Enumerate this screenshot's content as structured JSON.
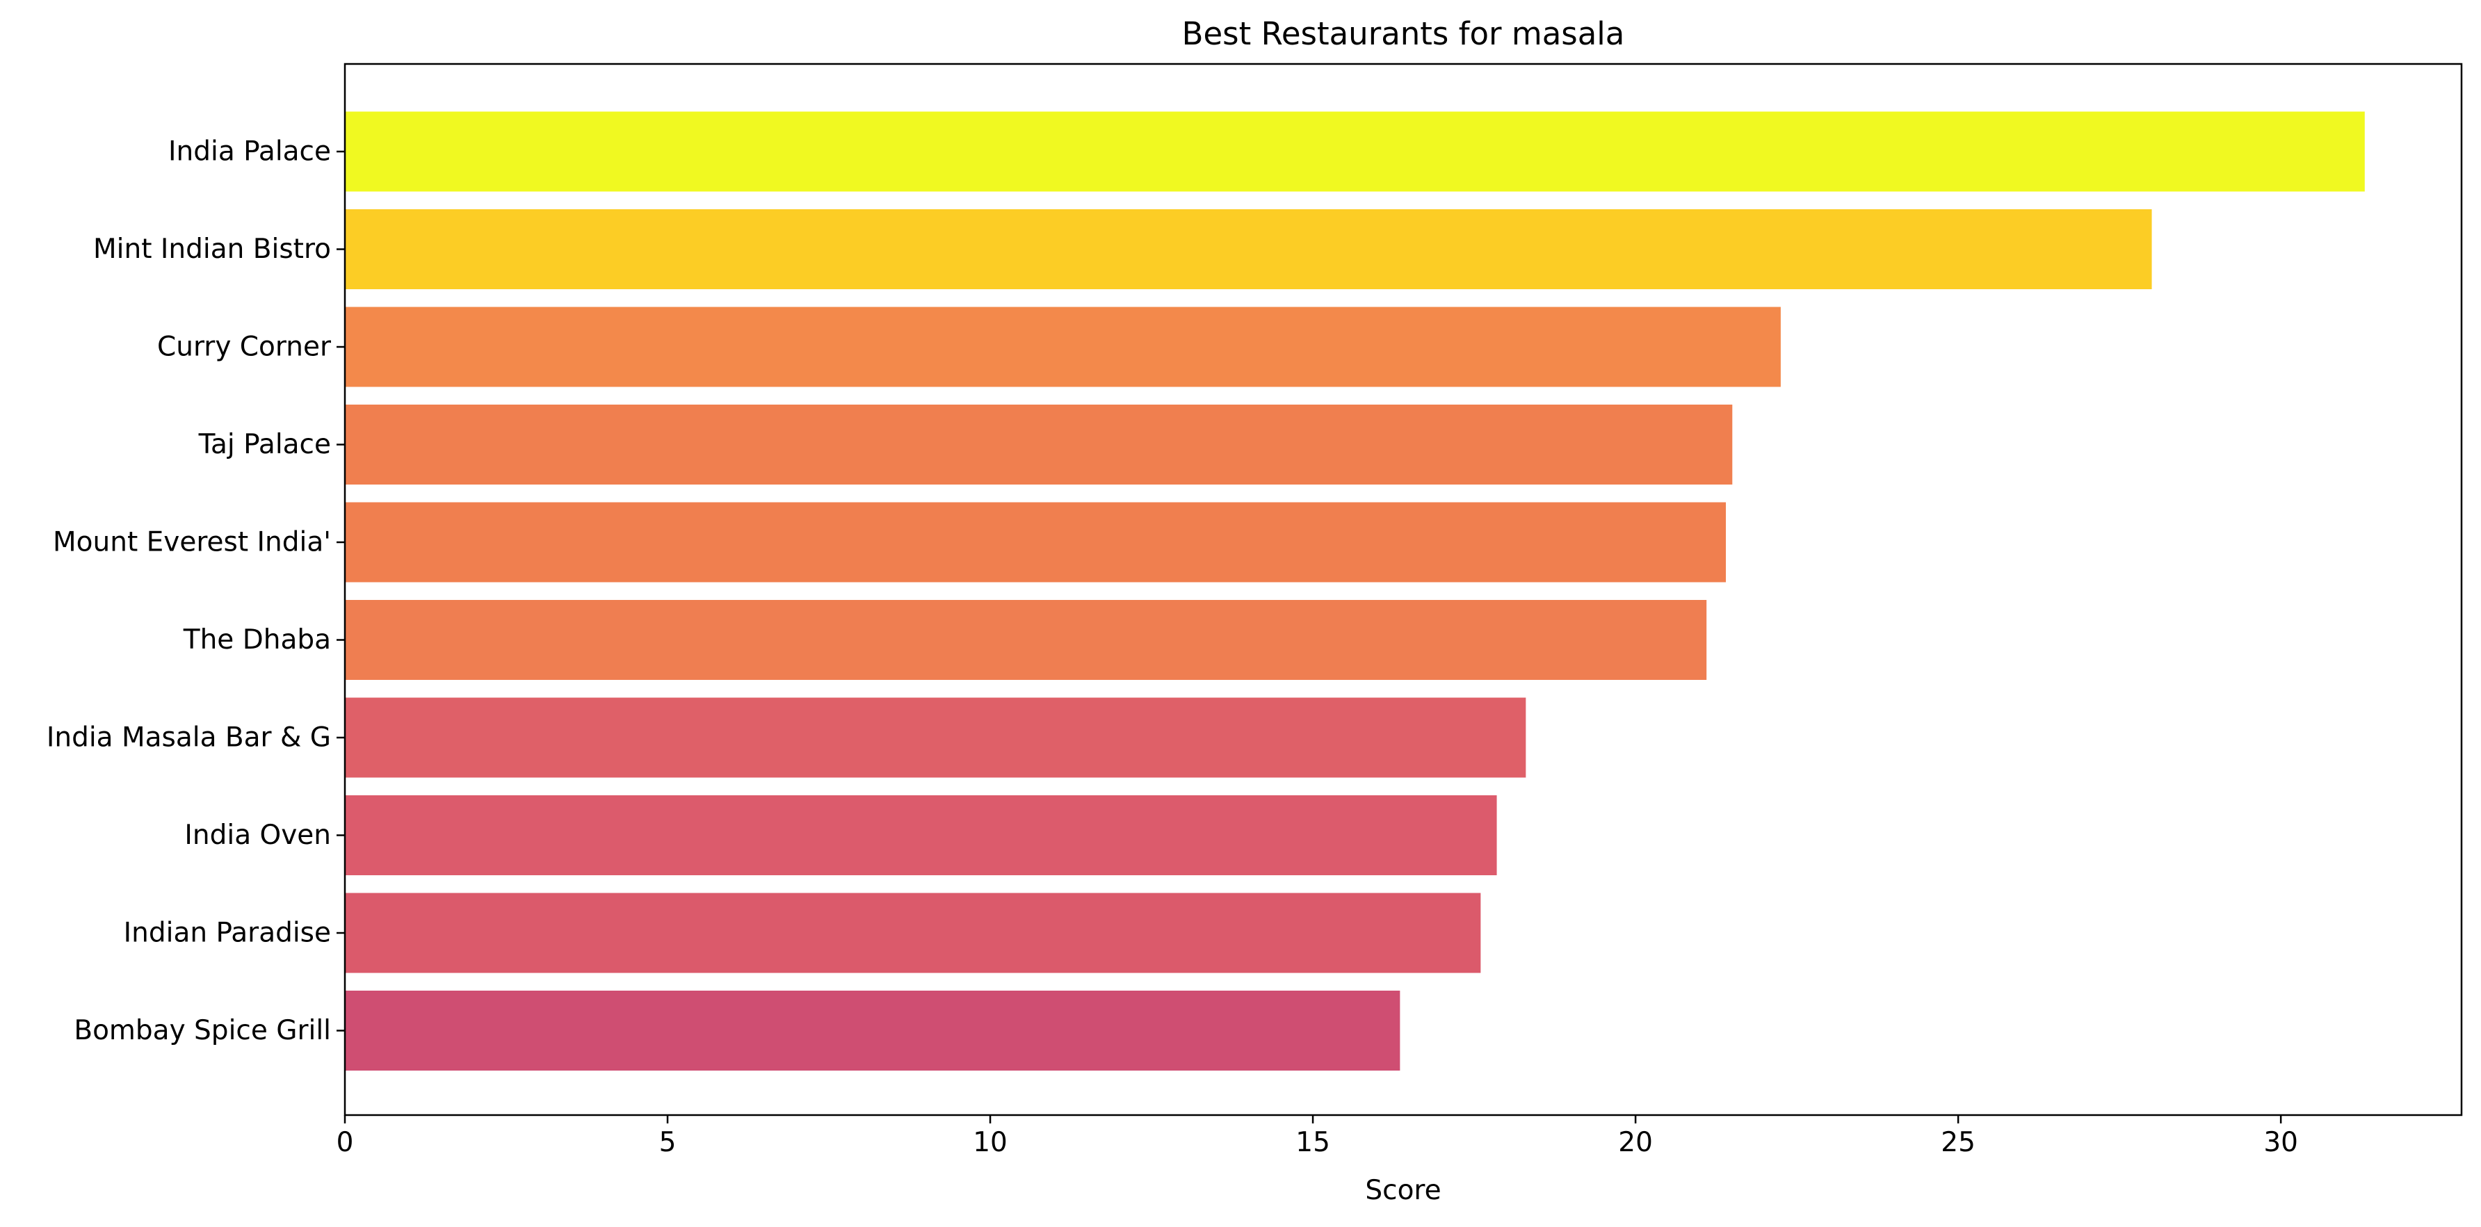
{
  "chart_data": {
    "type": "bar",
    "orientation": "horizontal",
    "title": "Best Restaurants for masala",
    "xlabel": "Score",
    "ylabel": "",
    "xlim": [
      0,
      32.8
    ],
    "xticks": [
      0,
      5,
      10,
      15,
      20,
      25,
      30
    ],
    "grid": false,
    "legend": "none",
    "categories": [
      "India Palace",
      "Mint Indian Bistro",
      "Curry Corner",
      "Taj Palace",
      "Mount Everest India'",
      "The Dhaba",
      "India Masala Bar & G",
      "India Oven",
      "Indian Paradise",
      "Bombay Spice Grill"
    ],
    "values": [
      31.3,
      28.0,
      22.25,
      21.5,
      21.4,
      21.1,
      18.3,
      17.85,
      17.6,
      16.35
    ],
    "colors": [
      "#f0f921",
      "#fccd25",
      "#f3894b",
      "#f07f4f",
      "#f07f4f",
      "#ef7e51",
      "#df6068",
      "#dc5b6c",
      "#db5a6b",
      "#cf4e72"
    ]
  }
}
